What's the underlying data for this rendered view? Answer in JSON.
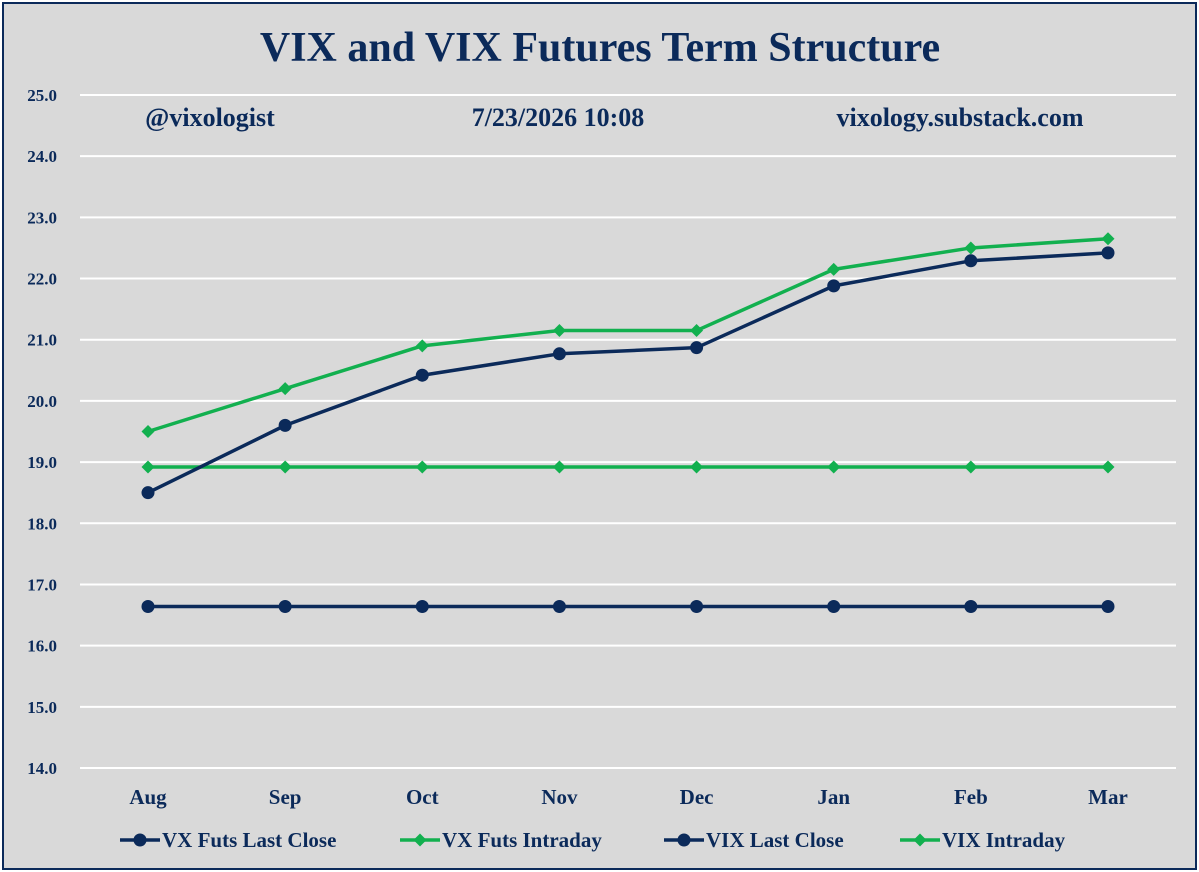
{
  "chart_data": {
    "type": "line",
    "title": "VIX and VIX Futures Term Structure",
    "annotations": {
      "handle": "@vixologist",
      "timestamp": "7/23/2026 10:08",
      "site": "vixology.substack.com"
    },
    "categories": [
      "Aug",
      "Sep",
      "Oct",
      "Nov",
      "Dec",
      "Jan",
      "Feb",
      "Mar"
    ],
    "ylim": [
      14.0,
      25.0
    ],
    "yticks": [
      "14.0",
      "15.0",
      "16.0",
      "17.0",
      "18.0",
      "19.0",
      "20.0",
      "21.0",
      "22.0",
      "23.0",
      "24.0",
      "25.0"
    ],
    "grid": true,
    "legend_position": "bottom",
    "series": [
      {
        "name": "VX Futs Last Close",
        "color": "#0b2a5a",
        "marker": "circle",
        "values": [
          18.5,
          19.6,
          20.42,
          20.77,
          20.87,
          21.88,
          22.29,
          22.42
        ]
      },
      {
        "name": "VX Futs Intraday",
        "color": "#12b04f",
        "marker": "diamond",
        "values": [
          19.5,
          20.2,
          20.9,
          21.15,
          21.15,
          22.15,
          22.5,
          22.65
        ]
      },
      {
        "name": "VIX Last Close",
        "color": "#0b2a5a",
        "marker": "circle",
        "values": [
          16.64,
          16.64,
          16.64,
          16.64,
          16.64,
          16.64,
          16.64,
          16.64
        ]
      },
      {
        "name": "VIX Intraday",
        "color": "#12b04f",
        "marker": "diamond",
        "values": [
          18.92,
          18.92,
          18.92,
          18.92,
          18.92,
          18.92,
          18.92,
          18.92
        ]
      }
    ]
  }
}
